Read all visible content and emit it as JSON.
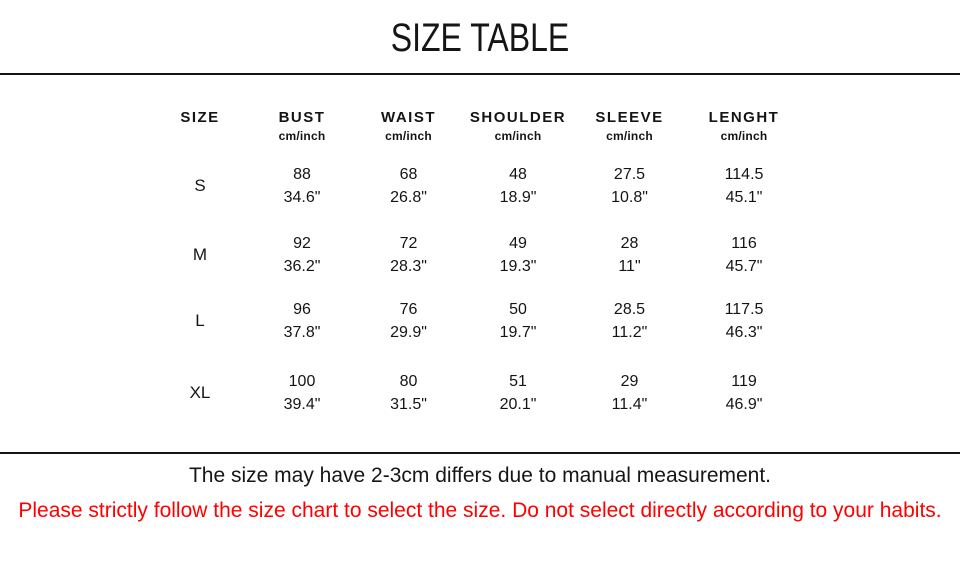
{
  "title": "SIZE TABLE",
  "chart_data": {
    "type": "table",
    "title": "SIZE TABLE",
    "size_column_header": "SIZE",
    "unit_label": "cm/inch",
    "measure_columns": [
      "BUST",
      "WAIST",
      "SHOULDER",
      "SLEEVE",
      "LENGHT"
    ],
    "rows": [
      {
        "size": "S",
        "cm": [
          "88",
          "68",
          "48",
          "27.5",
          "114.5"
        ],
        "inch": [
          "34.6\"",
          "26.8\"",
          "18.9\"",
          "10.8\"",
          "45.1\""
        ]
      },
      {
        "size": "M",
        "cm": [
          "92",
          "72",
          "49",
          "28",
          "116"
        ],
        "inch": [
          "36.2\"",
          "28.3\"",
          "19.3\"",
          "11\"",
          "45.7\""
        ]
      },
      {
        "size": "L",
        "cm": [
          "96",
          "76",
          "50",
          "28.5",
          "117.5"
        ],
        "inch": [
          "37.8\"",
          "29.9\"",
          "19.7\"",
          "11.2\"",
          "46.3\""
        ]
      },
      {
        "size": "XL",
        "cm": [
          "100",
          "80",
          "51",
          "29",
          "119"
        ],
        "inch": [
          "39.4\"",
          "31.5\"",
          "20.1\"",
          "11.4\"",
          "46.9\""
        ]
      }
    ]
  },
  "notes": {
    "measurement": "The size may have 2-3cm differs due to manual measurement.",
    "warning": "Please strictly follow the size chart to select the size. Do not select directly according to your habits."
  },
  "colors": {
    "warning_red": "#ff0000",
    "text_black": "#141414",
    "background": "#ffffff"
  }
}
